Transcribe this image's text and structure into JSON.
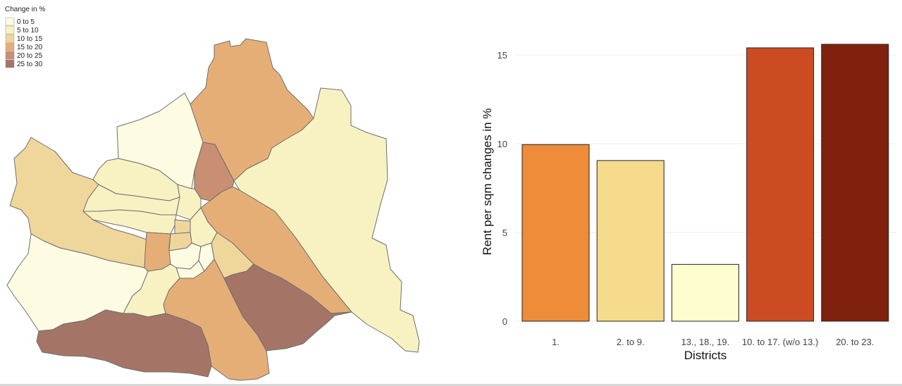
{
  "colors": {
    "scale": [
      "#fdfbe2",
      "#f8f2c2",
      "#efd69b",
      "#e6ae77",
      "#c88f73",
      "#a47566"
    ],
    "bar_outline": "#222222",
    "grid": "#ececec"
  },
  "map": {
    "legend": {
      "title": "Change in %",
      "items": [
        {
          "label": "0 to 5",
          "color": "#fdfbe2"
        },
        {
          "label": "5 to 10",
          "color": "#f8f2c2"
        },
        {
          "label": "10 to 15",
          "color": "#efd69b"
        },
        {
          "label": "15 to 20",
          "color": "#e6ae77"
        },
        {
          "label": "20 to 25",
          "color": "#c88f73"
        },
        {
          "label": "25 to 30",
          "color": "#a47566"
        }
      ]
    }
  },
  "chart_data": {
    "type": "bar",
    "categories": [
      "1.",
      "2. to 9.",
      "13., 18., 19.",
      "10. to 17. (w/o 13.)",
      "20. to 23."
    ],
    "values": [
      9.95,
      9.05,
      3.2,
      15.4,
      15.6
    ],
    "bar_colors": [
      "#ee8c3a",
      "#f6db8c",
      "#fdfdd0",
      "#cd4b22",
      "#80210e"
    ],
    "xlabel": "Districts",
    "ylabel": "Rent per sqm changes in %",
    "ylim": [
      0,
      16.05
    ],
    "yticks": [
      "0",
      "5",
      "10",
      "15"
    ],
    "grid": true
  }
}
